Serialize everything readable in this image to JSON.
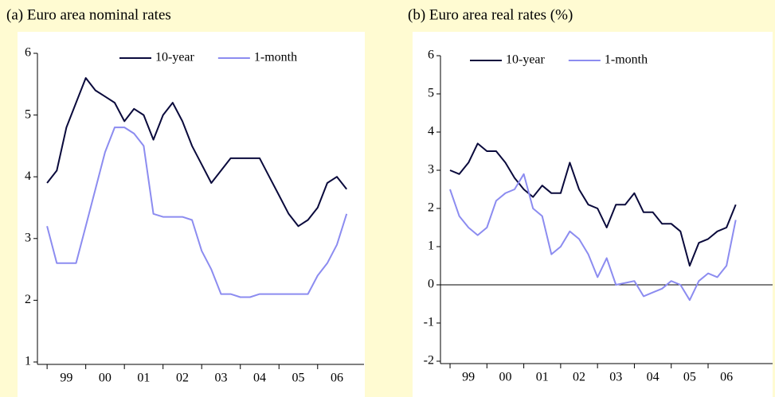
{
  "chart_data": [
    {
      "type": "line",
      "title": "(a) Euro area nominal rates",
      "x": [
        1999.0,
        1999.25,
        1999.5,
        1999.75,
        2000.0,
        2000.25,
        2000.5,
        2000.75,
        2001.0,
        2001.25,
        2001.5,
        2001.75,
        2002.0,
        2002.25,
        2002.5,
        2002.75,
        2003.0,
        2003.25,
        2003.5,
        2003.75,
        2004.0,
        2004.25,
        2004.5,
        2004.75,
        2005.0,
        2005.25,
        2005.5,
        2005.75,
        2006.0,
        2006.25,
        2006.5,
        2006.75
      ],
      "series": [
        {
          "name": "10-year",
          "color": "#0a0a3c",
          "values": [
            3.9,
            4.1,
            4.8,
            5.2,
            5.6,
            5.4,
            5.3,
            5.2,
            4.9,
            5.1,
            5.0,
            4.6,
            5.0,
            5.2,
            4.9,
            4.5,
            4.2,
            3.9,
            4.1,
            4.3,
            4.3,
            4.3,
            4.3,
            4.0,
            3.7,
            3.4,
            3.2,
            3.3,
            3.5,
            3.9,
            4.0,
            3.8
          ]
        },
        {
          "name": "1-month",
          "color": "#8c8cf0",
          "values": [
            3.2,
            2.6,
            2.6,
            2.6,
            3.2,
            3.8,
            4.4,
            4.8,
            4.8,
            4.7,
            4.5,
            3.4,
            3.35,
            3.35,
            3.35,
            3.3,
            2.8,
            2.5,
            2.1,
            2.1,
            2.05,
            2.05,
            2.1,
            2.1,
            2.1,
            2.1,
            2.1,
            2.1,
            2.4,
            2.6,
            2.9,
            3.4
          ]
        }
      ],
      "xlim": [
        1998.75,
        2007.2
      ],
      "xticks": [
        {
          "value": 1999,
          "label": "99"
        },
        {
          "value": 2000,
          "label": "00"
        },
        {
          "value": 2001,
          "label": "01"
        },
        {
          "value": 2002,
          "label": "02"
        },
        {
          "value": 2003,
          "label": "03"
        },
        {
          "value": 2004,
          "label": "04"
        },
        {
          "value": 2005,
          "label": "05"
        },
        {
          "value": 2006,
          "label": "06"
        }
      ],
      "ylim": [
        1,
        6
      ],
      "yticks": [
        1,
        2,
        3,
        4,
        5,
        6
      ],
      "legend": "top"
    },
    {
      "type": "line",
      "title": "(b) Euro area real rates (%)",
      "x": [
        1999.0,
        1999.25,
        1999.5,
        1999.75,
        2000.0,
        2000.25,
        2000.5,
        2000.75,
        2001.0,
        2001.25,
        2001.5,
        2001.75,
        2002.0,
        2002.25,
        2002.5,
        2002.75,
        2003.0,
        2003.25,
        2003.5,
        2003.75,
        2004.0,
        2004.25,
        2004.5,
        2004.75,
        2005.0,
        2005.25,
        2005.5,
        2005.75,
        2006.0,
        2006.25,
        2006.5,
        2006.75
      ],
      "series": [
        {
          "name": "10-year",
          "color": "#0a0a3c",
          "values": [
            3.0,
            2.9,
            3.2,
            3.7,
            3.5,
            3.5,
            3.2,
            2.8,
            2.5,
            2.3,
            2.6,
            2.4,
            2.4,
            3.2,
            2.5,
            2.1,
            2.0,
            1.5,
            2.1,
            2.1,
            2.4,
            1.9,
            1.9,
            1.6,
            1.6,
            1.4,
            0.5,
            1.1,
            1.2,
            1.4,
            1.5,
            2.1
          ]
        },
        {
          "name": "1-month",
          "color": "#8c8cf0",
          "values": [
            2.5,
            1.8,
            1.5,
            1.3,
            1.5,
            2.2,
            2.4,
            2.5,
            2.9,
            2.0,
            1.8,
            0.8,
            1.0,
            1.4,
            1.2,
            0.8,
            0.2,
            0.7,
            0.0,
            0.05,
            0.1,
            -0.3,
            -0.2,
            -0.1,
            0.1,
            0.0,
            -0.4,
            0.1,
            0.3,
            0.2,
            0.5,
            1.7
          ]
        }
      ],
      "xlim": [
        1998.74,
        2007.75
      ],
      "xticks": [
        {
          "value": 1999,
          "label": "99"
        },
        {
          "value": 2000,
          "label": "00"
        },
        {
          "value": 2001,
          "label": "01"
        },
        {
          "value": 2002,
          "label": "02"
        },
        {
          "value": 2003,
          "label": "03"
        },
        {
          "value": 2004,
          "label": "04"
        },
        {
          "value": 2005,
          "label": "05"
        },
        {
          "value": 2006,
          "label": "06"
        }
      ],
      "ylim": [
        -2,
        6
      ],
      "yticks": [
        -2,
        -1,
        0,
        1,
        2,
        3,
        4,
        5,
        6
      ],
      "hline": 0,
      "legend": "top"
    }
  ]
}
